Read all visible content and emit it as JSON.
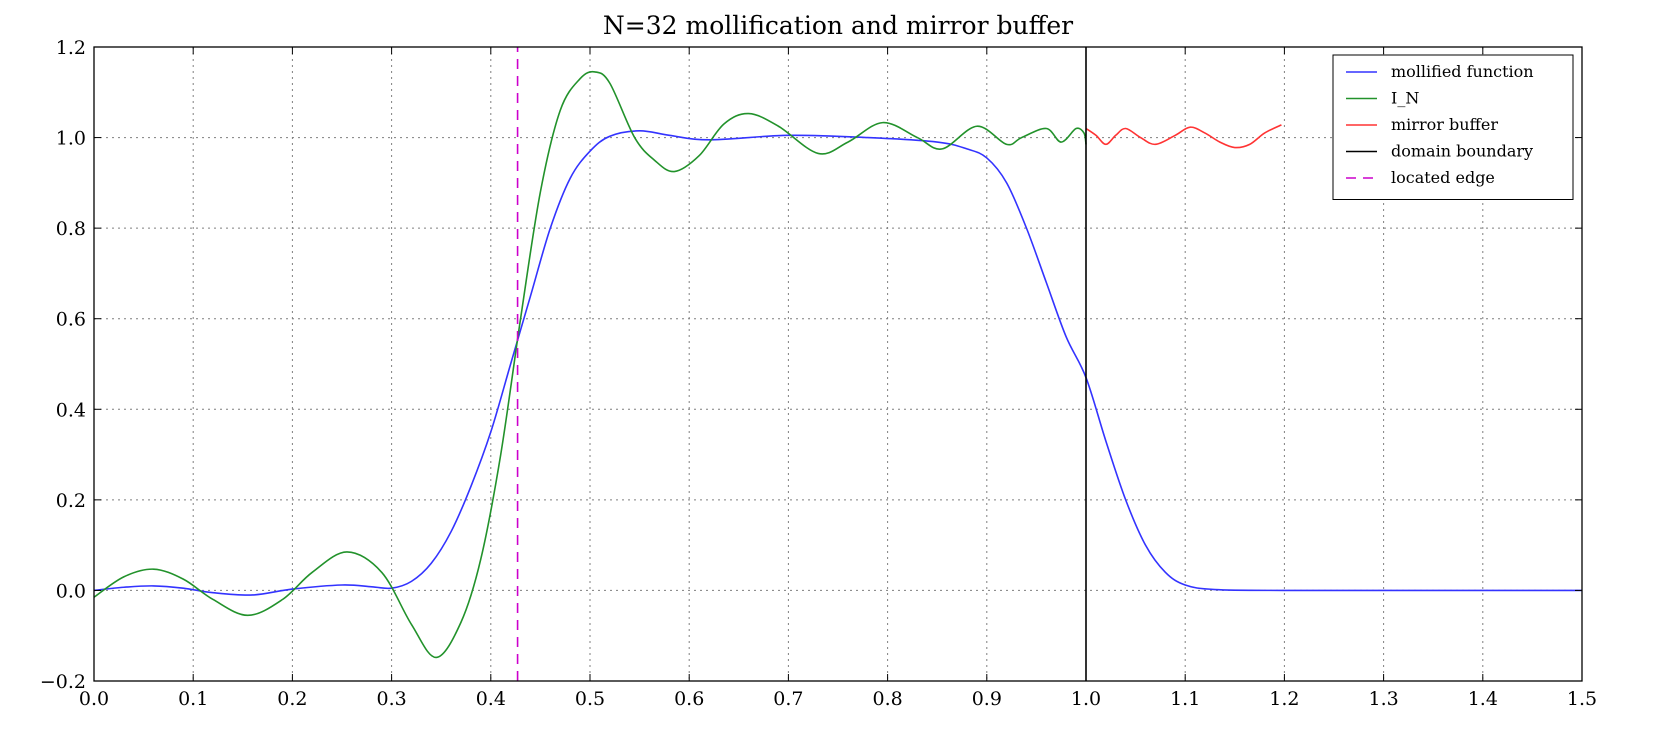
{
  "chart_data": {
    "type": "line",
    "title": "N=32 mollification and mirror buffer",
    "xlabel": "",
    "ylabel": "",
    "xlim": [
      0.0,
      1.5
    ],
    "ylim": [
      -0.2,
      1.2
    ],
    "xticks": [
      0.0,
      0.1,
      0.2,
      0.3,
      0.4,
      0.5,
      0.6,
      0.7,
      0.8,
      0.9,
      1.0,
      1.1,
      1.2,
      1.3,
      1.4,
      1.5
    ],
    "xtick_labels": [
      "0.0",
      "0.1",
      "0.2",
      "0.3",
      "0.4",
      "0.5",
      "0.6",
      "0.7",
      "0.8",
      "0.9",
      "1.0",
      "1.1",
      "1.2",
      "1.3",
      "1.4",
      "1.5"
    ],
    "yticks": [
      -0.2,
      0.0,
      0.2,
      0.4,
      0.6,
      0.8,
      1.0,
      1.2
    ],
    "ytick_labels": [
      "−0.2",
      "0.0",
      "0.2",
      "0.4",
      "0.6",
      "0.8",
      "1.0",
      "1.2"
    ],
    "grid": true,
    "legend_position": "top-right",
    "series": [
      {
        "name": "mollified function",
        "color": "#3333ff",
        "style": "solid",
        "x": [
          0.0,
          0.03,
          0.06,
          0.09,
          0.12,
          0.16,
          0.2,
          0.25,
          0.28,
          0.3,
          0.32,
          0.34,
          0.36,
          0.38,
          0.4,
          0.42,
          0.44,
          0.46,
          0.48,
          0.5,
          0.52,
          0.55,
          0.58,
          0.62,
          0.7,
          0.78,
          0.85,
          0.88,
          0.9,
          0.92,
          0.94,
          0.96,
          0.98,
          1.0,
          1.02,
          1.04,
          1.06,
          1.08,
          1.1,
          1.13,
          1.2,
          1.3,
          1.4,
          1.5
        ],
        "y": [
          0.0,
          0.007,
          0.01,
          0.005,
          -0.005,
          -0.01,
          0.003,
          0.012,
          0.008,
          0.005,
          0.02,
          0.06,
          0.13,
          0.23,
          0.35,
          0.5,
          0.65,
          0.8,
          0.91,
          0.97,
          1.003,
          1.015,
          1.005,
          0.995,
          1.005,
          1.0,
          0.99,
          0.975,
          0.955,
          0.9,
          0.8,
          0.68,
          0.56,
          0.47,
          0.33,
          0.2,
          0.1,
          0.04,
          0.012,
          0.002,
          0.0,
          0.0,
          0.0,
          0.0
        ]
      },
      {
        "name": "I_N",
        "color": "#22922b",
        "style": "solid",
        "x": [
          0.0,
          0.03,
          0.06,
          0.09,
          0.12,
          0.155,
          0.19,
          0.22,
          0.255,
          0.29,
          0.32,
          0.345,
          0.37,
          0.39,
          0.41,
          0.43,
          0.45,
          0.47,
          0.49,
          0.505,
          0.52,
          0.545,
          0.565,
          0.585,
          0.61,
          0.635,
          0.66,
          0.69,
          0.73,
          0.76,
          0.795,
          0.83,
          0.855,
          0.89,
          0.92,
          0.935,
          0.96,
          0.975,
          0.99,
          0.998,
          1.0
        ],
        "y": [
          -0.015,
          0.03,
          0.047,
          0.025,
          -0.02,
          -0.055,
          -0.02,
          0.04,
          0.085,
          0.04,
          -0.075,
          -0.148,
          -0.07,
          0.07,
          0.3,
          0.6,
          0.88,
          1.06,
          1.13,
          1.145,
          1.12,
          1.0,
          0.95,
          0.925,
          0.96,
          1.03,
          1.053,
          1.025,
          0.965,
          0.99,
          1.033,
          1.0,
          0.975,
          1.025,
          0.985,
          1.0,
          1.02,
          0.99,
          1.02,
          1.01,
          0.985
        ]
      },
      {
        "name": "mirror buffer",
        "color": "#ff3333",
        "style": "solid",
        "x": [
          1.0,
          1.01,
          1.02,
          1.03,
          1.04,
          1.055,
          1.07,
          1.09,
          1.105,
          1.12,
          1.135,
          1.15,
          1.165,
          1.18,
          1.197
        ],
        "y": [
          1.02,
          1.005,
          0.985,
          1.005,
          1.02,
          1.0,
          0.985,
          1.005,
          1.023,
          1.01,
          0.99,
          0.978,
          0.985,
          1.01,
          1.028
        ]
      },
      {
        "name": "domain boundary",
        "color": "#000000",
        "style": "solid",
        "x": [
          1.0,
          1.0
        ],
        "y": [
          -0.2,
          1.2
        ]
      },
      {
        "name": "located edge",
        "color": "#cc00cc",
        "style": "dashed",
        "x": [
          0.427,
          0.427
        ],
        "y": [
          -0.2,
          1.2
        ]
      }
    ]
  }
}
